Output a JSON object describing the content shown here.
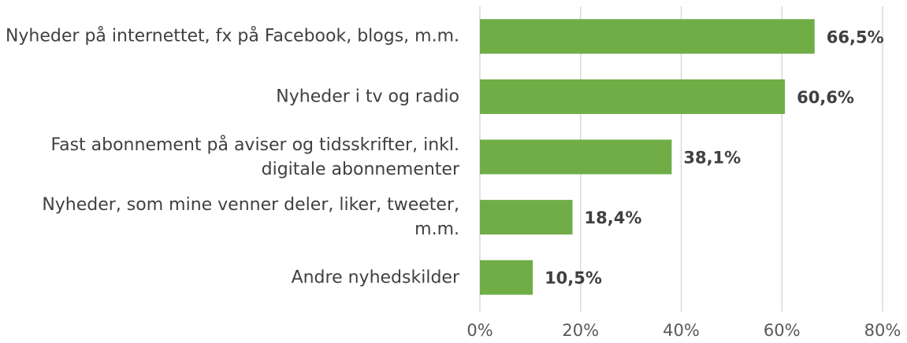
{
  "chart_data": {
    "type": "barh",
    "categories": [
      "Nyheder på internettet, fx på Facebook, blogs, m.m.",
      "Nyheder i tv og radio",
      "Fast abonnement på aviser og tidsskrifter, inkl. digitale abonnementer",
      "Nyheder, som mine venner deler, liker, tweeter, m.m.",
      "Andre nyhedskilder"
    ],
    "values": [
      66.5,
      60.6,
      38.1,
      18.4,
      10.5
    ],
    "value_labels": [
      "66,5%",
      "60,6%",
      "38,1%",
      "18,4%",
      "10,5%"
    ],
    "color": "#70ad47",
    "xlim": [
      0,
      80
    ],
    "xticks": [
      {
        "value": 0,
        "label": "0%"
      },
      {
        "value": 20,
        "label": "20%"
      },
      {
        "value": 40,
        "label": "40%"
      },
      {
        "value": 60,
        "label": "60%"
      },
      {
        "value": 80,
        "label": "80%"
      }
    ],
    "grid": true
  }
}
